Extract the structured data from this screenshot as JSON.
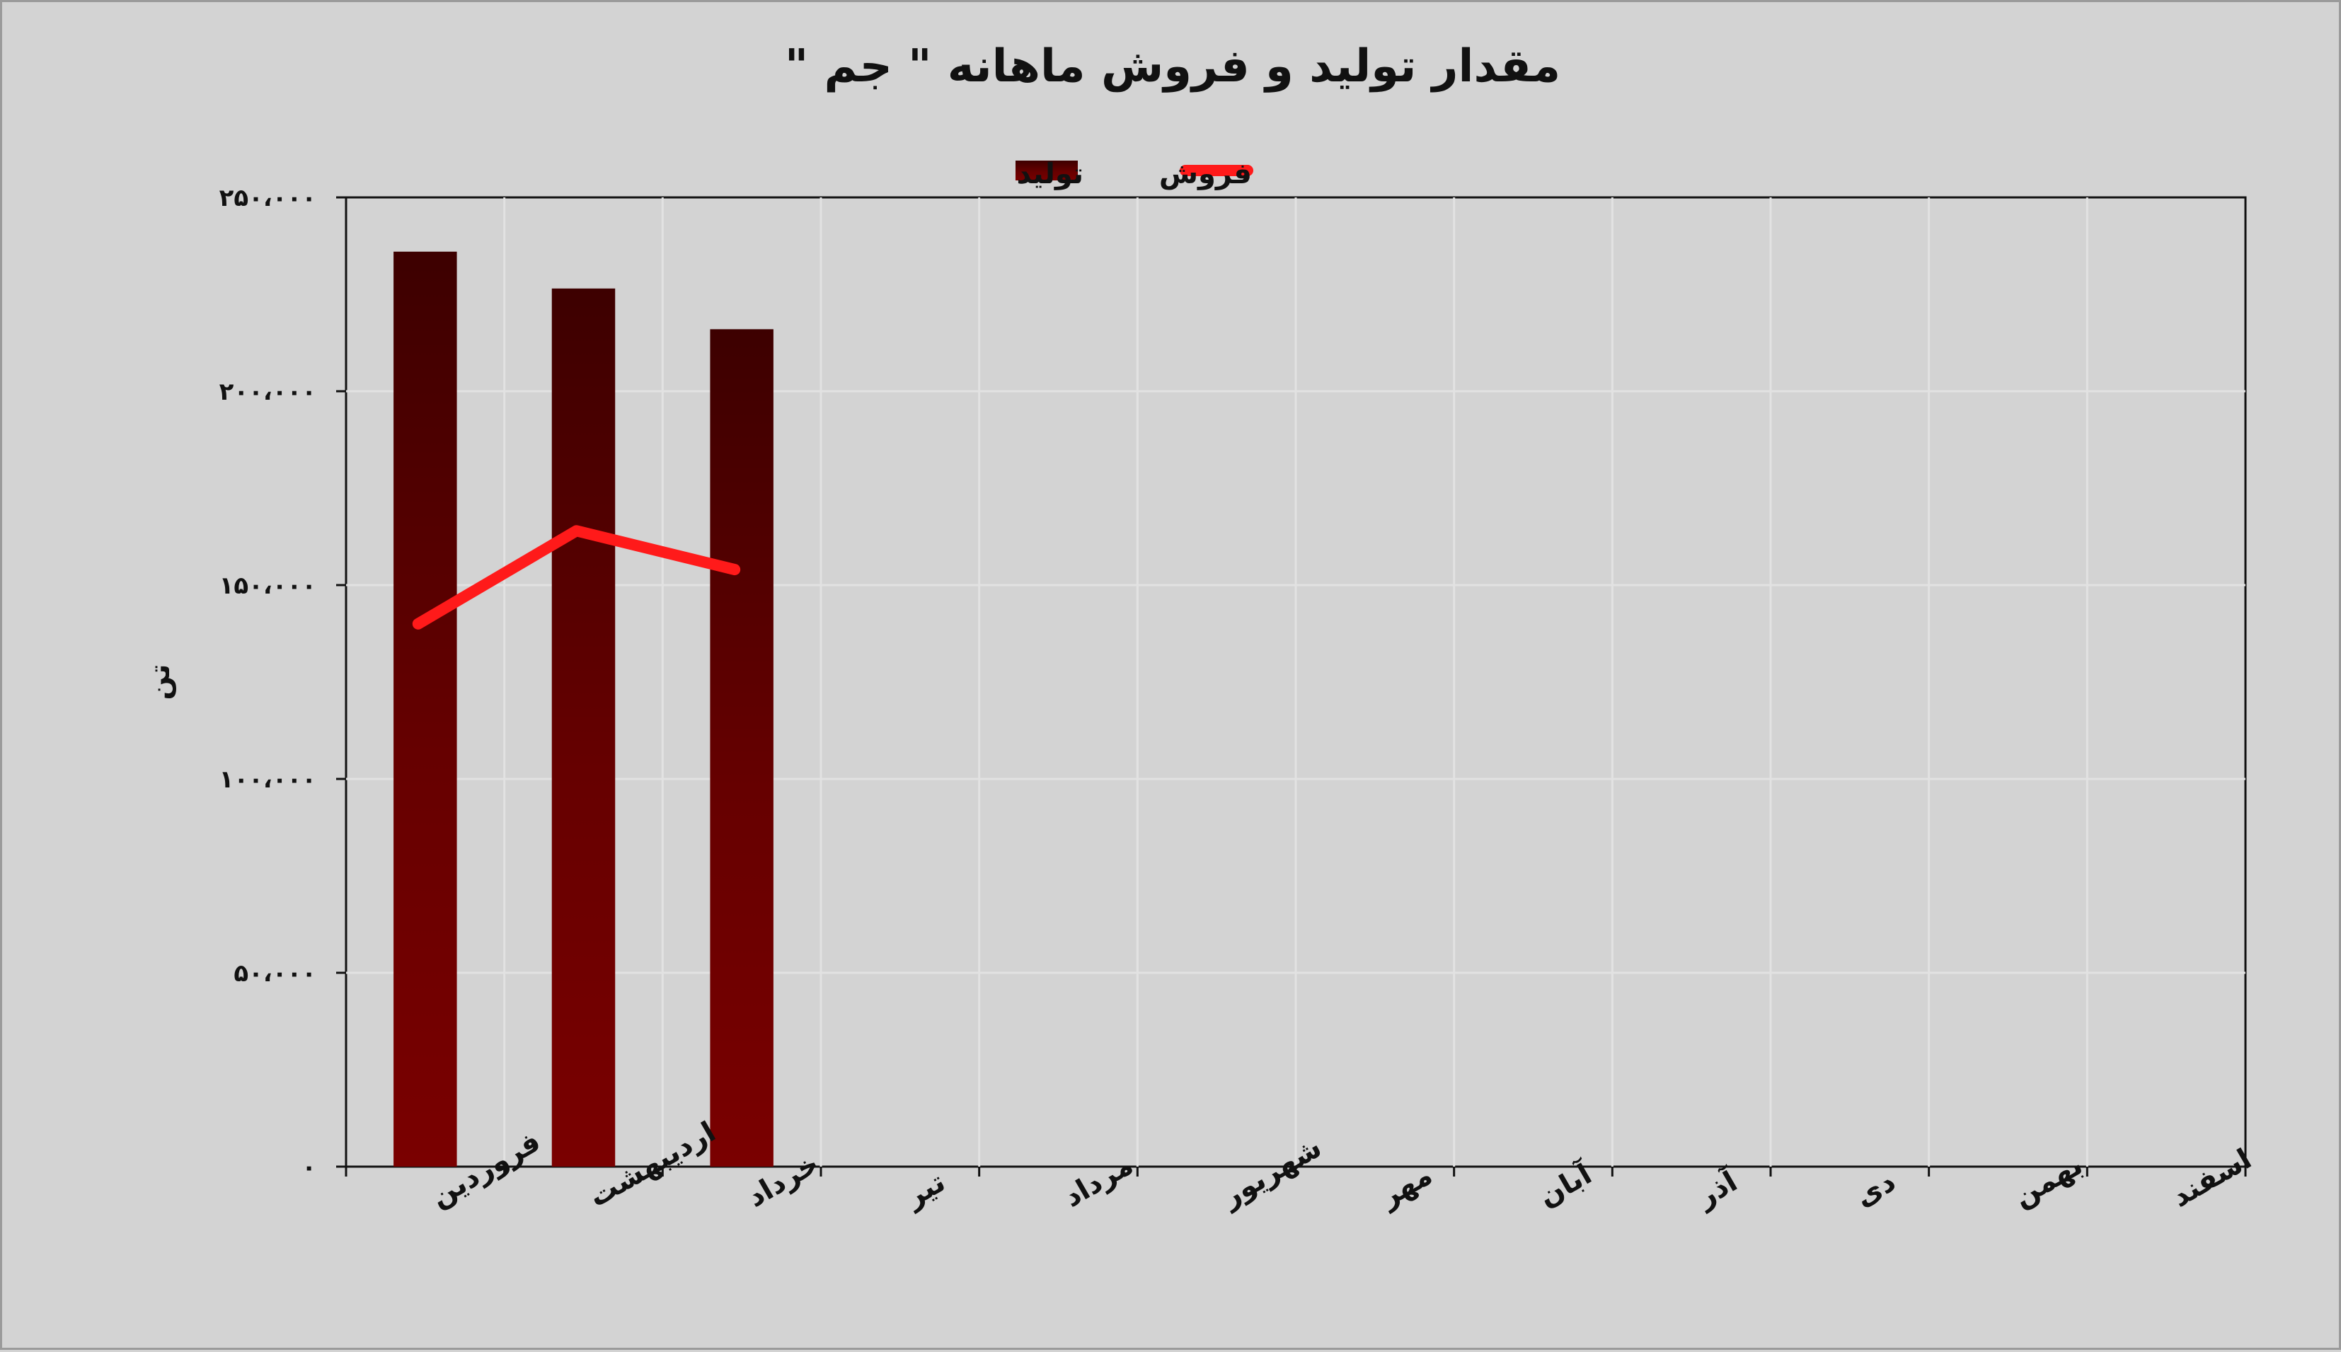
{
  "chart_data": {
    "type": "bar",
    "title": "مقدار تولید و فروش ماهانه \" جم \"",
    "ylabel": "تن",
    "xlabel": "",
    "ylim": [
      0,
      250000
    ],
    "yticks": [
      0,
      50000,
      100000,
      150000,
      200000,
      250000
    ],
    "ytick_labels": [
      "۰",
      "۵۰،۰۰۰",
      "۱۰۰،۰۰۰",
      "۱۵۰،۰۰۰",
      "۲۰۰،۰۰۰",
      "۲۵۰،۰۰۰"
    ],
    "categories": [
      "فروردین",
      "اردیبهشت",
      "خرداد",
      "تیر",
      "مرداد",
      "شهریور",
      "مهر",
      "آبان",
      "آذر",
      "دی",
      "بهمن",
      "اسفند"
    ],
    "series": [
      {
        "name": "تولید",
        "type": "bar",
        "color": "#6e0000",
        "values": [
          236000,
          226500,
          216000,
          null,
          null,
          null,
          null,
          null,
          null,
          null,
          null,
          null
        ]
      },
      {
        "name": "فروش",
        "type": "line",
        "color": "#ff1a1a",
        "values": [
          140000,
          164000,
          154000,
          null,
          null,
          null,
          null,
          null,
          null,
          null,
          null,
          null
        ]
      }
    ],
    "grid": true,
    "legend": "top-center"
  }
}
